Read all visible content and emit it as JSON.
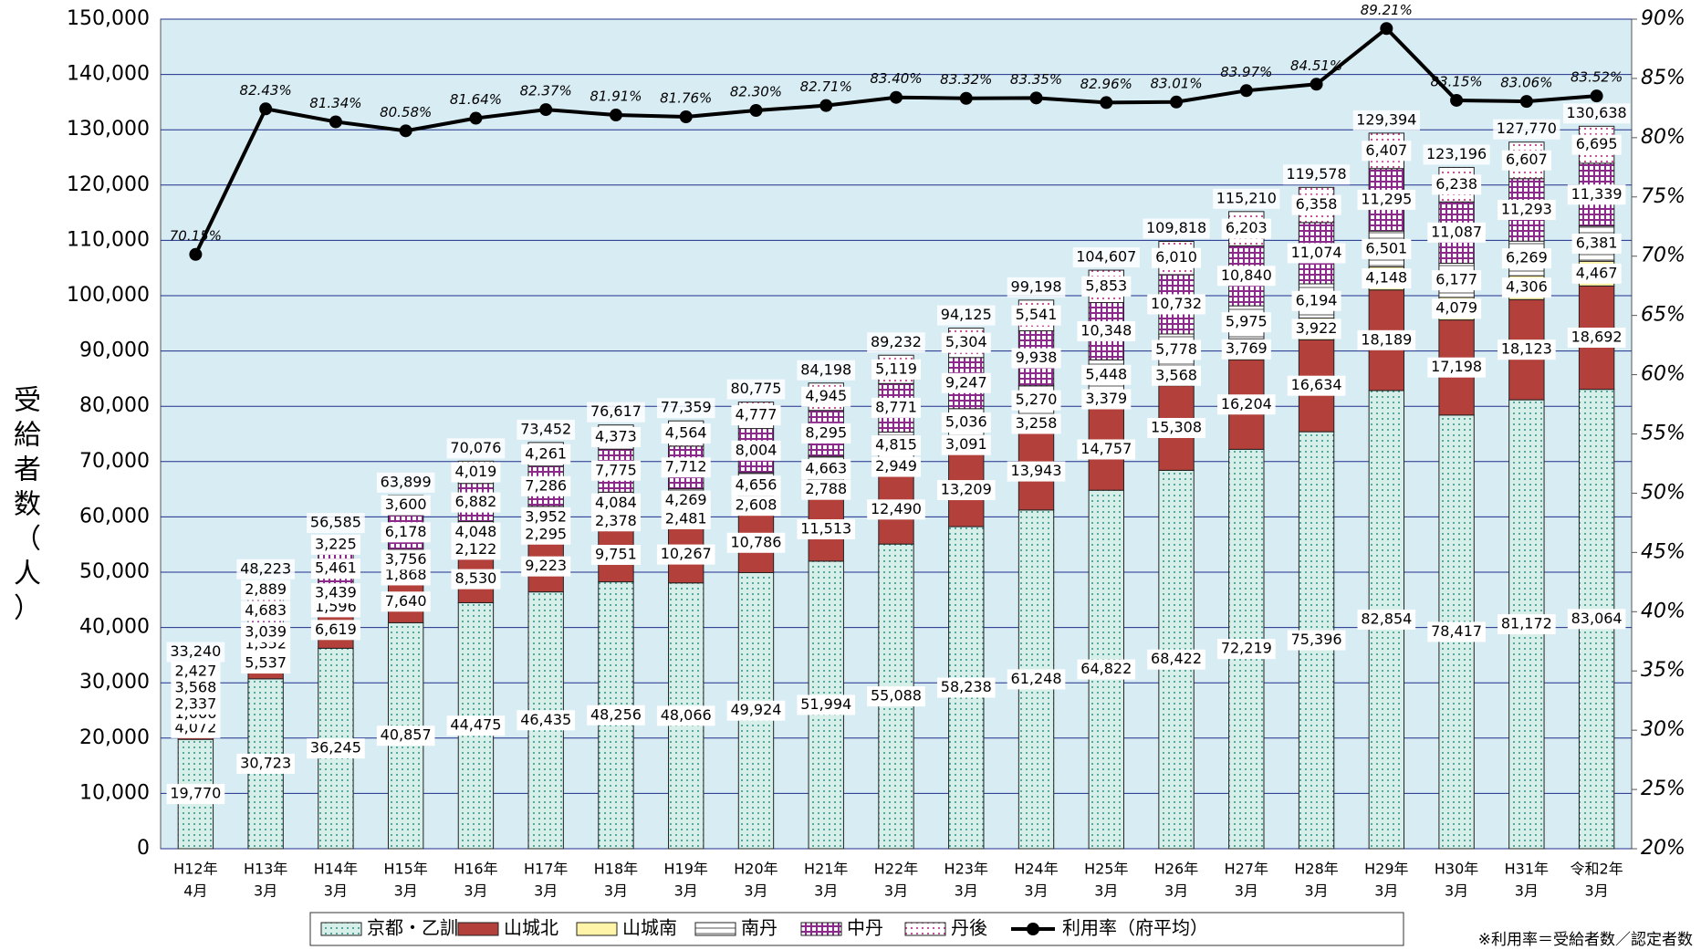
{
  "chart_data": {
    "type": "bar",
    "stacked": true,
    "y_label": "受給者数（人）",
    "footnote": "※利用率＝受給者数／認定者数",
    "categories": [
      [
        "H12年",
        "4月"
      ],
      [
        "H13年",
        "3月"
      ],
      [
        "H14年",
        "3月"
      ],
      [
        "H15年",
        "3月"
      ],
      [
        "H16年",
        "3月"
      ],
      [
        "H17年",
        "3月"
      ],
      [
        "H18年",
        "3月"
      ],
      [
        "H19年",
        "3月"
      ],
      [
        "H20年",
        "3月"
      ],
      [
        "H21年",
        "3月"
      ],
      [
        "H22年",
        "3月"
      ],
      [
        "H23年",
        "3月"
      ],
      [
        "H24年",
        "3月"
      ],
      [
        "H25年",
        "3月"
      ],
      [
        "H26年",
        "3月"
      ],
      [
        "H27年",
        "3月"
      ],
      [
        "H28年",
        "3月"
      ],
      [
        "H29年",
        "3月"
      ],
      [
        "H30年",
        "3月"
      ],
      [
        "H31年",
        "3月"
      ],
      [
        "令和2年",
        "3月"
      ]
    ],
    "series": [
      {
        "name": "京都・乙訓",
        "color": "#2f8f86",
        "values": [
          19770,
          30723,
          36245,
          40857,
          44475,
          46435,
          48256,
          48066,
          49924,
          51994,
          55088,
          58238,
          61248,
          64822,
          68422,
          72219,
          75396,
          82854,
          78417,
          81172,
          83064
        ],
        "value_labels": [
          "19,770",
          "30,723",
          "36,245",
          "40,857",
          "44,475",
          "46,435",
          "48,256",
          "48,066",
          "49,924",
          "51,994",
          "55,088",
          "58,238",
          "61,248",
          "64,822",
          "68,422",
          "72,219",
          "75,396",
          "82,854",
          "78,417",
          "81,172",
          "83,064"
        ]
      },
      {
        "name": "山城北",
        "color": "#b3403a",
        "values": [
          4072,
          5537,
          6619,
          7640,
          8530,
          9223,
          9751,
          10267,
          10786,
          11513,
          12490,
          13209,
          13943,
          14757,
          15308,
          16204,
          16634,
          18189,
          17198,
          18123,
          18692
        ],
        "value_labels": [
          "4,072",
          "5,537",
          "6,619",
          "7,640",
          "8,530",
          "9,223",
          "9,751",
          "10,267",
          "10,786",
          "11,513",
          "12,490",
          "13,209",
          "13,943",
          "14,757",
          "15,308",
          "16,204",
          "16,634",
          "18,189",
          "17,198",
          "18,123",
          "18,692"
        ]
      },
      {
        "name": "山城南",
        "color": "#fff4a8",
        "values": [
          1066,
          1352,
          1596,
          1868,
          2122,
          2295,
          2378,
          2481,
          2608,
          2788,
          2949,
          3091,
          3258,
          3379,
          3568,
          3769,
          3922,
          4148,
          4079,
          4306,
          4467
        ],
        "value_labels": [
          "1,066",
          "1,352",
          "1,596",
          "1,868",
          "2,122",
          "2,295",
          "2,378",
          "2,481",
          "2,608",
          "2,788",
          "2,949",
          "3,091",
          "3,258",
          "3,379",
          "3,568",
          "3,769",
          "3,922",
          "4,148",
          "4,079",
          "4,306",
          "4,467"
        ]
      },
      {
        "name": "南丹",
        "color": "#555555",
        "values": [
          2337,
          3039,
          3439,
          3756,
          4048,
          3952,
          4084,
          4269,
          4656,
          4663,
          4815,
          5036,
          5270,
          5448,
          5778,
          5975,
          6194,
          6501,
          6177,
          6269,
          6381
        ],
        "value_labels": [
          "2,337",
          "3,039",
          "3,439",
          "3,756",
          "4,048",
          "3,952",
          "4,084",
          "4,269",
          "4,656",
          "4,663",
          "4,815",
          "5,036",
          "5,270",
          "5,448",
          "5,778",
          "5,975",
          "6,194",
          "6,501",
          "6,177",
          "6,269",
          "6,381"
        ]
      },
      {
        "name": "中丹",
        "color": "#8c2a8c",
        "values": [
          3568,
          4683,
          5461,
          6178,
          6882,
          7286,
          7775,
          7712,
          8004,
          8295,
          8771,
          9247,
          9938,
          10348,
          10732,
          10840,
          11074,
          11295,
          11087,
          11293,
          11339
        ],
        "value_labels": [
          "3,568",
          "4,683",
          "5,461",
          "6,178",
          "6,882",
          "7,286",
          "7,775",
          "7,712",
          "8,004",
          "8,295",
          "8,771",
          "9,247",
          "9,938",
          "10,348",
          "10,732",
          "10,840",
          "11,074",
          "11,295",
          "11,087",
          "11,293",
          "11,339"
        ]
      },
      {
        "name": "丹後",
        "color": "#c0408c",
        "values": [
          2427,
          2889,
          3225,
          3600,
          4019,
          4261,
          4373,
          4564,
          4777,
          4945,
          5119,
          5304,
          5541,
          5853,
          6010,
          6203,
          6358,
          6407,
          6238,
          6607,
          6695
        ],
        "value_labels": [
          "2,427",
          "2,889",
          "3,225",
          "3,600",
          "4,019",
          "4,261",
          "4,373",
          "4,564",
          "4,777",
          "4,945",
          "5,119",
          "5,304",
          "5,541",
          "5,853",
          "6,010",
          "6,203",
          "6,358",
          "6,407",
          "6,238",
          "6,607",
          "6,695"
        ]
      },
      {
        "name": "利用率（府平均）",
        "type": "line",
        "axis": "y2",
        "color": "#000000",
        "values": [
          70.15,
          82.43,
          81.34,
          80.58,
          81.64,
          82.37,
          81.91,
          81.76,
          82.3,
          82.71,
          83.4,
          83.32,
          83.35,
          82.96,
          83.01,
          83.97,
          84.51,
          89.21,
          83.15,
          83.06,
          83.52
        ],
        "value_labels": [
          "70.15%",
          "82.43%",
          "81.34%",
          "80.58%",
          "81.64%",
          "82.37%",
          "81.91%",
          "81.76%",
          "82.30%",
          "82.71%",
          "83.40%",
          "83.32%",
          "83.35%",
          "82.96%",
          "83.01%",
          "83.97%",
          "84.51%",
          "89.21%",
          "83.15%",
          "83.06%",
          "83.52%"
        ]
      }
    ],
    "totals": [
      33240,
      48223,
      56585,
      63899,
      70076,
      73452,
      76617,
      77359,
      80775,
      84198,
      89232,
      94125,
      99198,
      104607,
      109818,
      115210,
      119578,
      129394,
      123196,
      127770,
      130638
    ],
    "totals_labels": [
      "33,240",
      "48,223",
      "56,585",
      "63,899",
      "70,076",
      "73,452",
      "76,617",
      "77,359",
      "80,775",
      "84,198",
      "89,232",
      "94,125",
      "99,198",
      "104,607",
      "109,818",
      "115,210",
      "119,578",
      "129,394",
      "123,196",
      "127,770",
      "130,638"
    ],
    "ylim": [
      0,
      150000
    ],
    "yticks": [
      0,
      {
        "value": 10000,
        "label": "10,000"
      },
      {
        "value": 20000,
        "label": "20,000"
      },
      {
        "value": 30000,
        "label": "30,000"
      },
      {
        "value": 40000,
        "label": "40,000"
      },
      {
        "value": 50000,
        "label": "50,000"
      },
      {
        "value": 60000,
        "label": "60,000"
      },
      {
        "value": 70000,
        "label": "70,000"
      },
      {
        "value": 80000,
        "label": "80,000"
      },
      {
        "value": 90000,
        "label": "90,000"
      },
      {
        "value": 100000,
        "label": "100,000"
      },
      {
        "value": 110000,
        "label": "110,000"
      },
      {
        "value": 120000,
        "label": "120,000"
      },
      {
        "value": 130000,
        "label": "130,000"
      },
      {
        "value": 140000,
        "label": "140,000"
      },
      {
        "value": 150000,
        "label": "150,000"
      }
    ],
    "y2lim": [
      20,
      90
    ],
    "y2ticks": [
      {
        "value": 20,
        "label": "20%"
      },
      {
        "value": 25,
        "label": "25%"
      },
      {
        "value": 30,
        "label": "30%"
      },
      {
        "value": 35,
        "label": "35%"
      },
      {
        "value": 40,
        "label": "40%"
      },
      {
        "value": 45,
        "label": "45%"
      },
      {
        "value": 50,
        "label": "50%"
      },
      {
        "value": 55,
        "label": "55%"
      },
      {
        "value": 60,
        "label": "60%"
      },
      {
        "value": 65,
        "label": "65%"
      },
      {
        "value": 70,
        "label": "70%"
      },
      {
        "value": 75,
        "label": "75%"
      },
      {
        "value": 80,
        "label": "80%"
      },
      {
        "value": 85,
        "label": "85%"
      },
      {
        "value": 90,
        "label": "90%"
      }
    ],
    "grid": true,
    "legend": "bottom"
  }
}
